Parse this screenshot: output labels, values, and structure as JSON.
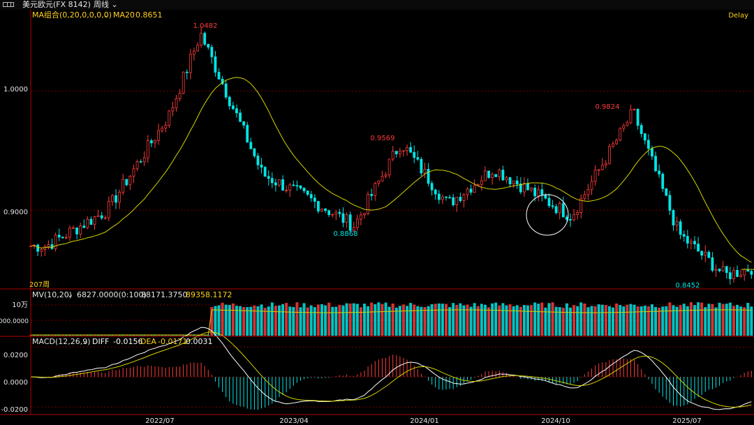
{
  "header": {
    "title": "美元欧元(FX 8142)",
    "period": "周线",
    "status": "Delay"
  },
  "price_panel": {
    "indicator": "MA组合(0,20,0,0,0,0)",
    "ma_label": "MA20",
    "ma_value": "0.8651",
    "bars_label": "207周",
    "y_ticks": [
      "1.0000",
      "0.9000"
    ],
    "annotations": {
      "high_2022": "1.0482",
      "low_2023": "0.8868",
      "high_2023": "0.9569",
      "high_2025": "0.9824",
      "low_2025": "0.8452"
    }
  },
  "volume_panel": {
    "indicator": "MV(10,20)",
    "v1": "6827.0000(0:100)",
    "v2": "88171.3750",
    "v3": "89358.1172",
    "y_ticks": [
      "10万",
      "0000.0000"
    ]
  },
  "macd_panel": {
    "indicator": "MACD(12,26,9)",
    "diff_label": "DIFF",
    "diff_value": "-0.0156",
    "dea_label": "DEA",
    "dea_value": "-0.0171",
    "macd_value": "0.0031",
    "y_ticks": [
      "0.0200",
      "0.0000",
      "-0.0200"
    ]
  },
  "x_labels": [
    "2022/07",
    "2023/04",
    "2024/01",
    "2024/10",
    "2025/07"
  ],
  "colors": {
    "up": "#ff3b3b",
    "down": "#00e6e6",
    "ma": "#d4d400",
    "grid": "#7a0000",
    "axis": "#b40000",
    "text": "#e6e6e6",
    "macd_diff": "#ffffff",
    "macd_dea": "#d4d400",
    "label_yellow": "#ffd21e"
  },
  "chart_data": {
    "type": "candlestick",
    "title": "美元欧元(FX 8142)",
    "period": "weekly",
    "ylim": [
      0.835,
      1.06
    ],
    "x_range": [
      "2021-10",
      "2025-09"
    ],
    "key_points": [
      {
        "date": "2021-11",
        "close": 0.87
      },
      {
        "date": "2022-03",
        "close": 0.9
      },
      {
        "date": "2022-07",
        "close": 0.98
      },
      {
        "date": "2022-09",
        "close": 1.0482,
        "note": "high"
      },
      {
        "date": "2023-01",
        "close": 0.93
      },
      {
        "date": "2023-04",
        "close": 0.91
      },
      {
        "date": "2023-07",
        "close": 0.8868,
        "note": "low"
      },
      {
        "date": "2023-10",
        "close": 0.9569,
        "note": "high"
      },
      {
        "date": "2024-01",
        "close": 0.905
      },
      {
        "date": "2024-04",
        "close": 0.935
      },
      {
        "date": "2024-09",
        "close": 0.895
      },
      {
        "date": "2025-01",
        "close": 0.9824,
        "note": "high"
      },
      {
        "date": "2025-04",
        "close": 0.88
      },
      {
        "date": "2025-07",
        "close": 0.8452,
        "note": "low"
      },
      {
        "date": "2025-09",
        "close": 0.853
      }
    ],
    "ma20_last": 0.8651,
    "macd": {
      "diff": -0.0156,
      "dea": -0.0171,
      "macd": 0.0031,
      "ylim": [
        -0.025,
        0.027
      ]
    },
    "volume": {
      "mv10": 88171.375,
      "mv20": 89358.1172
    }
  }
}
